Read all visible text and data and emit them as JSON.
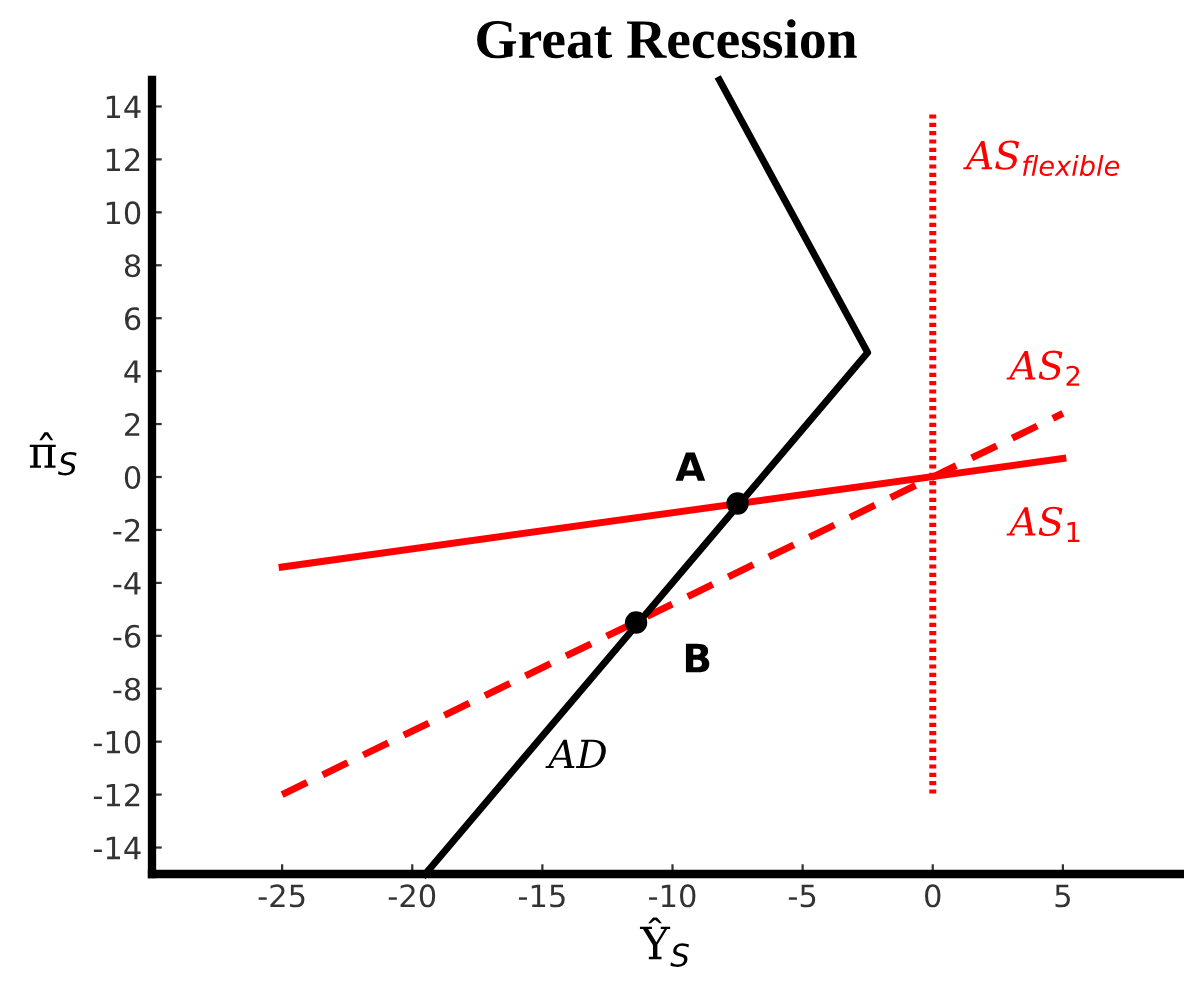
{
  "chart_data": {
    "type": "line",
    "title": "Great Recession",
    "xlabel": "Ŷ$_{S}$",
    "ylabel": "π̂$_{S}$",
    "xlim": [
      -30,
      9.5
    ],
    "ylim": [
      -15,
      15
    ],
    "xticks": [
      -25,
      -20,
      -15,
      -10,
      -5,
      0,
      5
    ],
    "yticks": [
      -14,
      -12,
      -10,
      -8,
      -6,
      -4,
      -2,
      0,
      2,
      4,
      6,
      8,
      10,
      12,
      14
    ],
    "grid": false,
    "legend": false,
    "series": [
      {
        "name": "AS$_{1}$",
        "color": "#ff0000",
        "line_style": "solid",
        "x": [
          -25,
          5
        ],
        "values": [
          -3.4,
          0.7
        ]
      },
      {
        "name": "AS$_{2}$",
        "color": "#ff0000",
        "line_style": "dashed",
        "x": [
          -25,
          5
        ],
        "values": [
          -12,
          2.4
        ]
      },
      {
        "name": "AS$_{flexible}$",
        "color": "#ff0000",
        "line_style": "dotted",
        "x": [
          0,
          0
        ],
        "values": [
          13.7,
          -12
        ]
      },
      {
        "name": "AD",
        "color": "#000000",
        "line_style": "solid",
        "x": [
          -8.2,
          -2.5,
          -19.5
        ],
        "values": [
          15,
          4.7,
          -15
        ]
      },
      {
        "type": "scatter",
        "color": "#000000",
        "marker": "circle",
        "x": [
          -7.5,
          -11.4
        ],
        "values": [
          -1.0,
          -5.5
        ]
      }
    ],
    "annotations": [
      {
        "text": "A",
        "x": -7.5,
        "y": -1.0
      },
      {
        "text": "B",
        "x": -11.4,
        "y": -5.5
      }
    ]
  }
}
